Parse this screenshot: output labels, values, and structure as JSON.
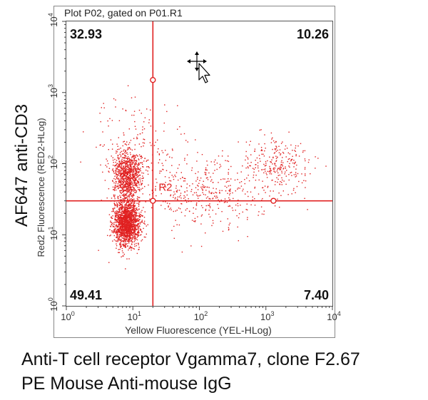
{
  "chart_data": {
    "type": "scatter",
    "title": "Plot P02, gated on P01.R1",
    "xlabel": "Yellow Fluorescence (YEL-HLog)",
    "ylabel": "Red2 Fluorescence (RED2-HLog)",
    "outer_ylabel": "AF647 anti-CD3",
    "x_scale": "log",
    "y_scale": "log",
    "xlim": [
      1,
      10000
    ],
    "ylim": [
      1,
      10000
    ],
    "x_ticks": [
      1,
      10,
      100,
      1000,
      10000
    ],
    "y_ticks": [
      1,
      10,
      100,
      1000,
      10000
    ],
    "x_tick_labels": [
      {
        "base": "10",
        "exp": "0"
      },
      {
        "base": "10",
        "exp": "1"
      },
      {
        "base": "10",
        "exp": "2"
      },
      {
        "base": "10",
        "exp": "3"
      },
      {
        "base": "10",
        "exp": "4"
      }
    ],
    "y_tick_labels": [
      {
        "base": "10",
        "exp": "0"
      },
      {
        "base": "10",
        "exp": "1"
      },
      {
        "base": "10",
        "exp": "2"
      },
      {
        "base": "10",
        "exp": "3"
      },
      {
        "base": "10",
        "exp": "4"
      }
    ],
    "gate": {
      "name": "R2",
      "x": 20,
      "y": 30
    },
    "quadrants": {
      "upper_left": "32.93",
      "upper_right": "10.26",
      "lower_left": "49.41",
      "lower_right": "7.40"
    },
    "point_color": "#e02020",
    "gate_color": "#e02020",
    "clusters": [
      {
        "x": 8,
        "y": 15,
        "spread_x": 0.1,
        "spread_y": 0.16,
        "n": 1700
      },
      {
        "x": 8,
        "y": 70,
        "spread_x": 0.1,
        "spread_y": 0.17,
        "n": 900
      },
      {
        "x": 120,
        "y": 40,
        "spread_x": 0.45,
        "spread_y": 0.25,
        "n": 420
      },
      {
        "x": 1500,
        "y": 100,
        "spread_x": 0.25,
        "spread_y": 0.2,
        "n": 260
      },
      {
        "x": 10,
        "y": 200,
        "spread_x": 0.35,
        "spread_y": 0.35,
        "n": 160
      }
    ]
  },
  "caption": {
    "line1": "Anti-T cell receptor Vgamma7, clone F2.67",
    "line2": "PE Mouse Anti-mouse IgG"
  }
}
